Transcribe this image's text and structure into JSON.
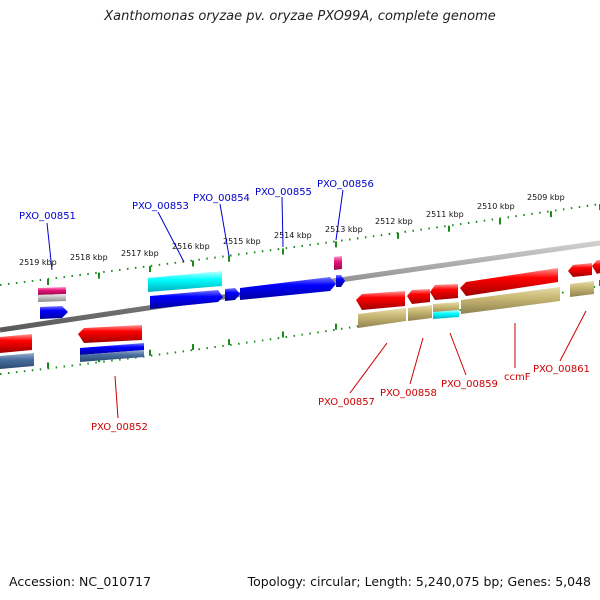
{
  "title": "Xanthomonas oryzae pv. oryzae PXO99A, complete genome",
  "footer": {
    "accession": "Accession: NC_010717",
    "stats": "Topology: circular; Length: 5,240,075 bp; Genes: 5,048"
  },
  "colors": {
    "forward_gene": "#ff0000",
    "reverse_gene": "#0000ff",
    "cds_khaki": "#c8b86a",
    "cyan_feature": "#00ffff",
    "pink_feature": "#e8157a",
    "upper_label": "#0000cc",
    "lower_label": "#cc0000",
    "tick": "#1a8a1a",
    "backbone": "#888888"
  },
  "ruler_labels": [
    "2519 kbp",
    "2518 kbp",
    "2517 kbp",
    "2516 kbp",
    "2515 kbp",
    "2514 kbp",
    "2513 kbp",
    "2512 kbp",
    "2511 kbp",
    "2510 kbp",
    "2509 kbp"
  ],
  "upper_gene_labels": [
    "PXO_00851",
    "PXO_00853",
    "PXO_00854",
    "PXO_00855",
    "PXO_00856"
  ],
  "lower_gene_labels": [
    "PXO_00852",
    "PXO_00857",
    "PXO_00858",
    "PXO_00859",
    "ccmF",
    "PXO_00861"
  ]
}
